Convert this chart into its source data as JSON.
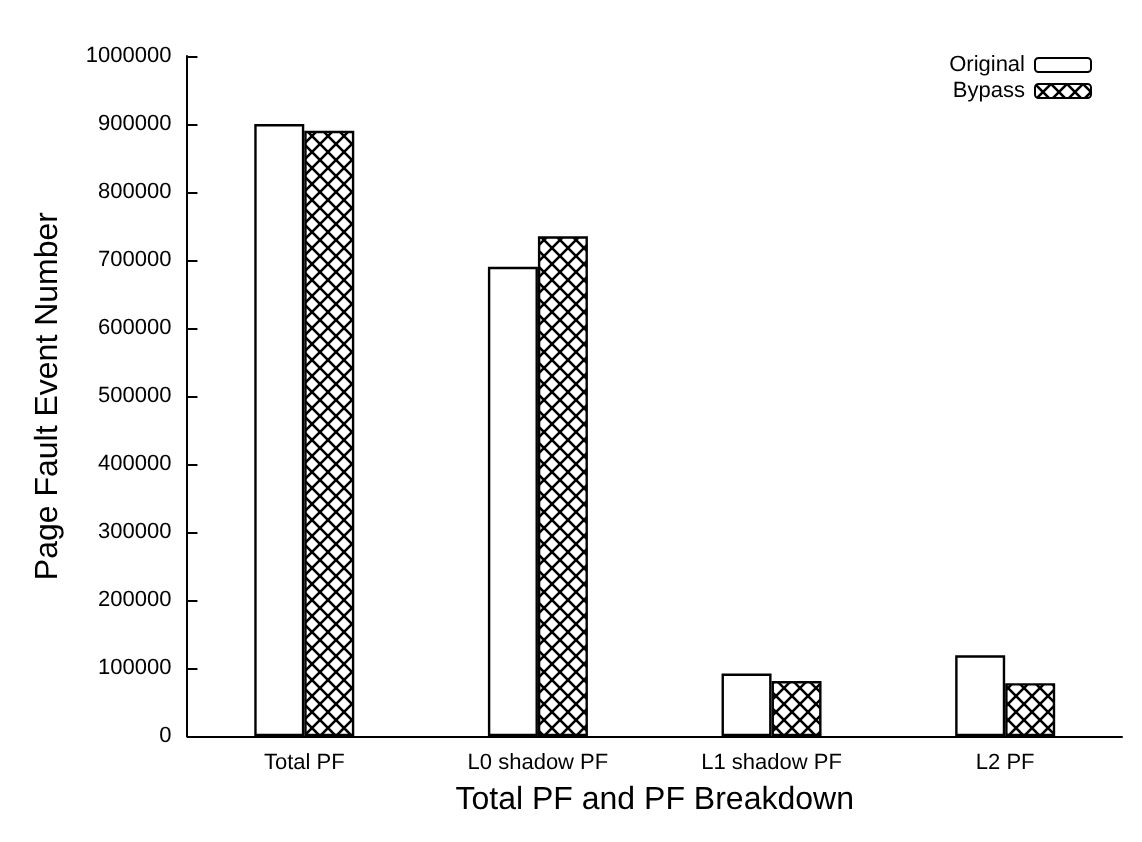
{
  "chart_data": {
    "type": "bar",
    "xlabel": "Total PF and PF Breakdown",
    "ylabel": "Page Fault Event Number",
    "categories": [
      "Total PF",
      "L0 shadow PF",
      "L1 shadow PF",
      "L2 PF"
    ],
    "series": [
      {
        "name": "Original",
        "color": "#ffffff",
        "values": [
          900000,
          690000,
          92000,
          119000
        ]
      },
      {
        "name": "Bypass",
        "color": "#000000",
        "values": [
          890000,
          735000,
          81000,
          78000
        ]
      }
    ],
    "ylim": [
      0,
      1000000
    ],
    "yticks": [
      0,
      100000,
      200000,
      300000,
      400000,
      500000,
      600000,
      700000,
      800000,
      900000,
      1000000
    ],
    "grid": false,
    "legend": "top right"
  }
}
